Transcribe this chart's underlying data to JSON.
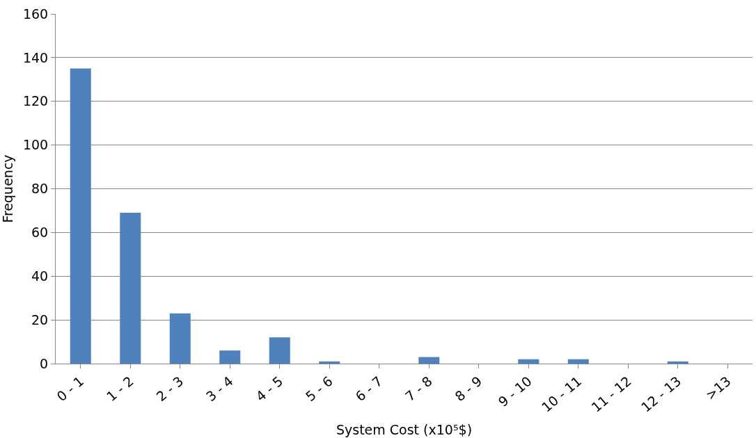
{
  "chart_data": {
    "type": "bar",
    "xlabel": "System Cost (x10⁵$)",
    "ylabel": "Frequency",
    "categories": [
      "0 - 1",
      "1 - 2",
      "2 - 3",
      "3 - 4",
      "4 - 5",
      "5 - 6",
      "6 - 7",
      "7 - 8",
      "8 - 9",
      "9 - 10",
      "10 - 11",
      "11 - 12",
      "12 - 13",
      ">13"
    ],
    "values": [
      135,
      69,
      23,
      6,
      12,
      1,
      0,
      3,
      0,
      2,
      2,
      0,
      1,
      0
    ],
    "color": "#4f81bd",
    "ylim": [
      0,
      160
    ],
    "yticks": [
      0,
      20,
      40,
      60,
      80,
      100,
      120,
      140,
      160
    ],
    "grid": "y"
  }
}
